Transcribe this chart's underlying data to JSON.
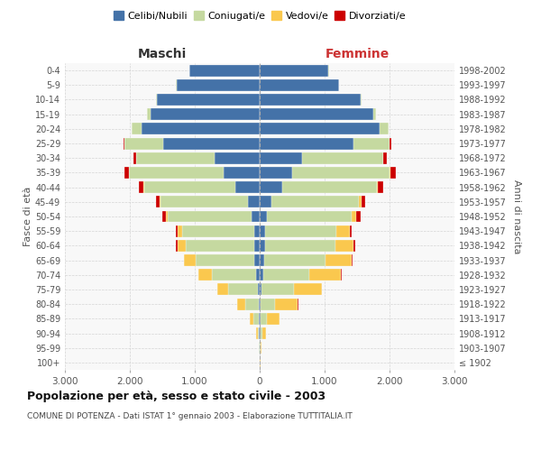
{
  "age_groups": [
    "100+",
    "95-99",
    "90-94",
    "85-89",
    "80-84",
    "75-79",
    "70-74",
    "65-69",
    "60-64",
    "55-59",
    "50-54",
    "45-49",
    "40-44",
    "35-39",
    "30-34",
    "25-29",
    "20-24",
    "15-19",
    "10-14",
    "5-9",
    "0-4"
  ],
  "birth_years": [
    "≤ 1902",
    "1903-1907",
    "1908-1912",
    "1913-1917",
    "1918-1922",
    "1923-1927",
    "1928-1932",
    "1933-1937",
    "1938-1942",
    "1943-1947",
    "1948-1952",
    "1953-1957",
    "1958-1962",
    "1963-1967",
    "1968-1972",
    "1973-1977",
    "1978-1982",
    "1983-1987",
    "1988-1992",
    "1993-1997",
    "1998-2002"
  ],
  "maschi": {
    "celibi": [
      2,
      3,
      8,
      15,
      20,
      30,
      60,
      80,
      90,
      90,
      120,
      180,
      380,
      560,
      700,
      1480,
      1820,
      1680,
      1580,
      1280,
      1080
    ],
    "coniugati": [
      3,
      8,
      25,
      80,
      200,
      450,
      680,
      900,
      1050,
      1100,
      1300,
      1350,
      1400,
      1450,
      1200,
      600,
      150,
      50,
      20,
      5,
      3
    ],
    "vedovi": [
      1,
      4,
      20,
      60,
      130,
      170,
      200,
      180,
      130,
      80,
      30,
      15,
      10,
      5,
      3,
      2,
      2,
      1,
      0,
      0,
      0
    ],
    "divorziati": [
      0,
      0,
      0,
      0,
      3,
      5,
      5,
      10,
      20,
      20,
      50,
      55,
      70,
      70,
      40,
      20,
      5,
      2,
      0,
      0,
      0
    ]
  },
  "femmine": {
    "nubili": [
      2,
      3,
      10,
      15,
      20,
      25,
      50,
      70,
      80,
      85,
      110,
      180,
      350,
      500,
      650,
      1450,
      1850,
      1750,
      1550,
      1220,
      1060
    ],
    "coniugate": [
      3,
      10,
      30,
      90,
      220,
      500,
      720,
      950,
      1080,
      1100,
      1300,
      1350,
      1450,
      1500,
      1250,
      550,
      130,
      40,
      15,
      4,
      3
    ],
    "vedove": [
      3,
      15,
      60,
      200,
      350,
      430,
      480,
      400,
      280,
      200,
      80,
      40,
      20,
      10,
      5,
      3,
      3,
      1,
      0,
      0,
      0
    ],
    "divorziate": [
      0,
      0,
      0,
      0,
      5,
      8,
      8,
      15,
      30,
      30,
      60,
      55,
      80,
      90,
      50,
      20,
      5,
      2,
      0,
      0,
      0
    ]
  },
  "colors": {
    "celibi": "#4472A8",
    "coniugati": "#C5D9A0",
    "vedovi": "#FAC84E",
    "divorziati": "#CC0000"
  },
  "xlim": 3000,
  "title": "Popolazione per età, sesso e stato civile - 2003",
  "subtitle": "COMUNE DI POTENZA - Dati ISTAT 1° gennaio 2003 - Elaborazione TUTTITALIA.IT",
  "xlabel_left": "Maschi",
  "xlabel_right": "Femmine",
  "ylabel_left": "Fasce di età",
  "ylabel_right": "Anni di nascita",
  "legend_labels": [
    "Celibi/Nubili",
    "Coniugati/e",
    "Vedovi/e",
    "Divorziati/e"
  ],
  "xtick_labels": [
    "3.000",
    "2.000",
    "1.000",
    "0",
    "1.000",
    "2.000",
    "3.000"
  ]
}
